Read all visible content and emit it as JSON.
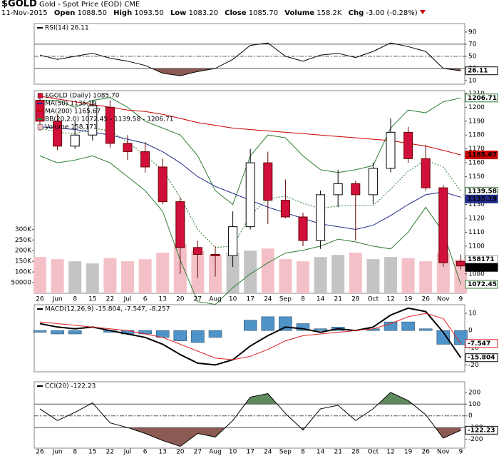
{
  "header": {
    "symbol": "$GOLD",
    "description": "Gold - Spot Price (EOD)",
    "exchange": "CME",
    "date": "11-Nov-2015",
    "quote": [
      {
        "label": "Open",
        "value": "1088.50"
      },
      {
        "label": "High",
        "value": "1093.50"
      },
      {
        "label": "Low",
        "value": "1083.20"
      },
      {
        "label": "Close",
        "value": "1085.70"
      },
      {
        "label": "Volume",
        "value": "158.2K"
      },
      {
        "label": "Chg",
        "value": "-3.00 (-0.28%)"
      }
    ]
  },
  "chart_data": [
    {
      "type": "line",
      "series": [
        {
          "name": "RSI(14) 26.11",
          "color": "#000000",
          "values": [
            52,
            45,
            50,
            55,
            47,
            42,
            35,
            22,
            18,
            25,
            30,
            45,
            68,
            72,
            50,
            42,
            52,
            55,
            48,
            58,
            72,
            66,
            58,
            30,
            26.11
          ]
        }
      ],
      "ylim": [
        4,
        104
      ],
      "yticks": [
        90,
        70,
        50,
        30,
        10
      ],
      "overbought": 70,
      "oversold": 30,
      "midline": 50,
      "overbought_color": "#5f8a5f",
      "oversold_color": "#8b5a52"
    },
    {
      "type": "candlestick",
      "name": "$GOLD (Daily) 1085.70",
      "categories": [
        "26",
        "Jun",
        "8",
        "15",
        "22",
        "Jul",
        "6",
        "13",
        "20",
        "27",
        "Aug",
        "10",
        "17",
        "24",
        "Sep",
        "8",
        "14",
        "21",
        "28",
        "Oct",
        "12",
        "19",
        "26",
        "Nov",
        "9"
      ],
      "open": [
        1205,
        1190,
        1172,
        1180,
        1200,
        1174,
        1168,
        1157,
        1132,
        1099,
        1094,
        1093,
        1114,
        1160,
        1133,
        1121,
        1104,
        1137,
        1145,
        1137,
        1156,
        1182,
        1163,
        1142,
        1089
      ],
      "high": [
        1208,
        1195,
        1190,
        1205,
        1205,
        1180,
        1175,
        1163,
        1135,
        1104,
        1100,
        1125,
        1170,
        1168,
        1148,
        1124,
        1140,
        1155,
        1147,
        1160,
        1192,
        1186,
        1173,
        1144,
        1094
      ],
      "low": [
        1183,
        1169,
        1170,
        1176,
        1171,
        1162,
        1153,
        1130,
        1080,
        1077,
        1078,
        1085,
        1112,
        1116,
        1120,
        1100,
        1098,
        1128,
        1104,
        1130,
        1153,
        1160,
        1140,
        1085,
        1083.2
      ],
      "close": [
        1190,
        1172,
        1180,
        1201,
        1174,
        1168,
        1157,
        1132,
        1099,
        1094,
        1093,
        1114,
        1160,
        1133,
        1121,
        1104,
        1137,
        1145,
        1137,
        1156,
        1182,
        1163,
        1142,
        1088,
        1085.7
      ],
      "last_close_label": "1085.70",
      "up_color": "#ffffff",
      "down_color": "#d0103a",
      "series": [
        {
          "name": "MA(50) 1135.19",
          "color": "#1f2a8a",
          "values": [
            1186,
            1185,
            1184,
            1182,
            1180,
            1177,
            1174,
            1168,
            1160,
            1150,
            1143,
            1138,
            1133,
            1128,
            1124,
            1120,
            1116,
            1114,
            1112,
            1115,
            1122,
            1130,
            1137,
            1139,
            1135.19
          ]
        },
        {
          "name": "MA(200) 1165.67",
          "color": "#cc0000",
          "values": [
            1208,
            1206,
            1204,
            1202,
            1200,
            1198,
            1197,
            1195,
            1192,
            1189,
            1187,
            1185,
            1184,
            1183,
            1182,
            1181,
            1180,
            1179,
            1178,
            1177,
            1176,
            1174,
            1172,
            1169,
            1165.67
          ]
        }
      ],
      "bands": {
        "name": "BB(20,2.0) 1072.45 - 1139.58 - 1206.71",
        "color": "#2e7d32",
        "upper": [
          1205,
          1205,
          1200,
          1205,
          1207,
          1200,
          1190,
          1185,
          1180,
          1165,
          1140,
          1130,
          1165,
          1180,
          1178,
          1165,
          1155,
          1153,
          1155,
          1158,
          1185,
          1198,
          1196,
          1204,
          1206.71
        ],
        "middle": [
          1185,
          1182,
          1181,
          1185,
          1183,
          1175,
          1165,
          1155,
          1135,
          1112,
          1099,
          1100,
          1122,
          1134,
          1136,
          1131,
          1127,
          1129,
          1129,
          1129,
          1141,
          1154,
          1162,
          1157,
          1139.58
        ],
        "lower": [
          1165,
          1160,
          1162,
          1165,
          1160,
          1150,
          1140,
          1125,
          1090,
          1060,
          1058,
          1070,
          1080,
          1088,
          1095,
          1097,
          1100,
          1105,
          1103,
          1100,
          1098,
          1110,
          1128,
          1110,
          1072.45
        ]
      },
      "volume": {
        "name": "Volume 158,171",
        "up_color": "#c4c4c4",
        "down_color": "#f4c0c8",
        "values": [
          170000,
          160000,
          150000,
          140000,
          165000,
          150000,
          160000,
          190000,
          230000,
          200000,
          180000,
          190000,
          200000,
          210000,
          160000,
          150000,
          170000,
          180000,
          190000,
          160000,
          170000,
          165000,
          150000,
          190000,
          158171
        ],
        "ylim": [
          0,
          950000
        ],
        "yticks": [
          {
            "value": 300000,
            "label": "300K"
          },
          {
            "value": 250000,
            "label": "250K"
          },
          {
            "value": 200000,
            "label": "200K"
          },
          {
            "value": 150000,
            "label": "150K"
          },
          {
            "value": 100000,
            "label": "100K"
          },
          50000
        ]
      },
      "ylim": [
        1066,
        1212
      ],
      "yticks": [
        1210,
        1200,
        1190,
        1180,
        1170,
        1160,
        1150,
        1140,
        1130,
        1120,
        1110,
        1100,
        1090,
        1080
      ]
    },
    {
      "type": "macd",
      "title": "MACD(12,26,9) -15.804, -7.547, -8.257",
      "series": [
        {
          "kind": "histogram",
          "color": "#4f94c8",
          "values": [
            -1,
            -2,
            -2,
            0,
            -1,
            -2,
            -2,
            -4,
            -6,
            -7,
            -4,
            0,
            6,
            8,
            8,
            4,
            1,
            2,
            0,
            1,
            5,
            5,
            1,
            -8,
            -8.257
          ]
        },
        {
          "kind": "line",
          "color": "#000000",
          "values": [
            4,
            2,
            1,
            2,
            0,
            -2,
            -4,
            -8,
            -14,
            -19,
            -20,
            -17,
            -9,
            -3,
            2,
            1,
            -1,
            1,
            0,
            2,
            9,
            13,
            11,
            -1,
            -15.804
          ]
        },
        {
          "kind": "line",
          "color": "#e02020",
          "values": [
            5,
            4,
            3,
            2,
            1,
            0,
            -2,
            -4,
            -8,
            -12,
            -16,
            -17,
            -15,
            -11,
            -6,
            -3,
            -2,
            -1,
            0,
            1,
            4,
            8,
            10,
            7,
            -7.547
          ]
        }
      ],
      "ylim": [
        -24,
        15
      ],
      "yticks": [
        10,
        0,
        -10,
        -20
      ]
    },
    {
      "type": "line",
      "series": [
        {
          "name": "CCI(20) -122.23",
          "color": "#000000",
          "values": [
            60,
            -40,
            30,
            110,
            -60,
            -100,
            -150,
            -210,
            -260,
            -150,
            -180,
            -40,
            160,
            190,
            20,
            -120,
            60,
            90,
            -40,
            60,
            200,
            130,
            10,
            -190,
            -122.23
          ]
        }
      ],
      "ylim": [
        -275,
        290
      ],
      "yticks": [
        200,
        100,
        0,
        -100,
        -200
      ],
      "overbought": 100,
      "oversold": -100,
      "midline": 0,
      "overbought_color": "#5f8a5f",
      "oversold_color": "#8b5a52"
    }
  ]
}
